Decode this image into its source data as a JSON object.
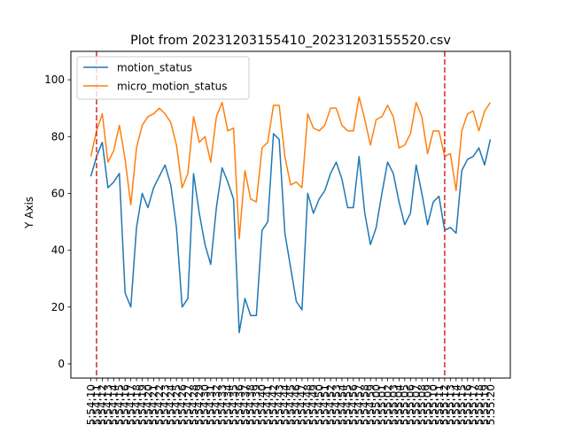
{
  "chart_data": {
    "type": "line",
    "title": "Plot from 20231203155410_20231203155520.csv",
    "xlabel": "",
    "ylabel": "Y Axis",
    "ylim": [
      -5,
      110
    ],
    "yticks": [
      0,
      20,
      40,
      60,
      80,
      100
    ],
    "grid": false,
    "legend_position": "top-left",
    "x": [
      "15:54:10",
      "15:54:11",
      "15:54:12",
      "15:54:13",
      "15:54:14",
      "15:54:15",
      "15:54:16",
      "15:54:17",
      "15:54:18",
      "15:54:19",
      "15:54:20",
      "15:54:21",
      "15:54:22",
      "15:54:23",
      "15:54:24",
      "15:54:25",
      "15:54:26",
      "15:54:27",
      "15:54:28",
      "15:54:29",
      "15:54:30",
      "15:54:31",
      "15:54:32",
      "15:54:33",
      "15:54:34",
      "15:54:35",
      "15:54:36",
      "15:54:37",
      "15:54:38",
      "15:54:39",
      "15:54:40",
      "15:54:41",
      "15:54:42",
      "15:54:43",
      "15:54:44",
      "15:54:45",
      "15:54:46",
      "15:54:47",
      "15:54:48",
      "15:54:49",
      "15:54:50",
      "15:54:51",
      "15:54:52",
      "15:54:53",
      "15:54:54",
      "15:54:55",
      "15:54:56",
      "15:54:57",
      "15:54:58",
      "15:54:59",
      "15:55:00",
      "15:55:01",
      "15:55:02",
      "15:55:03",
      "15:55:04",
      "15:55:05",
      "15:55:06",
      "15:55:07",
      "15:55:08",
      "15:55:09",
      "15:55:10",
      "15:55:11",
      "15:55:12",
      "15:55:13",
      "15:55:14",
      "15:55:15",
      "15:55:16",
      "15:55:17",
      "15:55:18",
      "15:55:19",
      "15:55:20"
    ],
    "series": [
      {
        "name": "motion_status",
        "color": "#1f77b4",
        "values": [
          66,
          73,
          78,
          62,
          64,
          67,
          25,
          20,
          48,
          60,
          55,
          62,
          66,
          70,
          63,
          48,
          20,
          23,
          67,
          53,
          42,
          35,
          55,
          69,
          64,
          58,
          11,
          23,
          17,
          17,
          47,
          50,
          81,
          79,
          46,
          34,
          22,
          19,
          60,
          53,
          58,
          61,
          67,
          71,
          65,
          55,
          55,
          73,
          53,
          42,
          48,
          60,
          71,
          67,
          57,
          49,
          53,
          70,
          60,
          49,
          57,
          59,
          47,
          48,
          46,
          68,
          72,
          73,
          76,
          70,
          79
        ]
      },
      {
        "name": "micro_motion_status",
        "color": "#ff7f0e",
        "values": [
          73,
          82,
          88,
          71,
          75,
          84,
          72,
          56,
          76,
          84,
          87,
          88,
          90,
          88,
          85,
          77,
          62,
          67,
          87,
          78,
          80,
          71,
          87,
          92,
          82,
          83,
          44,
          68,
          58,
          57,
          76,
          78,
          91,
          91,
          73,
          63,
          64,
          62,
          88,
          83,
          82,
          84,
          90,
          90,
          84,
          82,
          82,
          94,
          86,
          77,
          86,
          87,
          91,
          87,
          76,
          77,
          81,
          92,
          87,
          74,
          82,
          82,
          73,
          74,
          61,
          82,
          88,
          89,
          82,
          89,
          92
        ]
      }
    ],
    "vlines": [
      {
        "x": "15:54:11",
        "color": "#d62728",
        "style": "dashed"
      },
      {
        "x": "15:55:12",
        "color": "#d62728",
        "style": "dashed"
      }
    ]
  }
}
